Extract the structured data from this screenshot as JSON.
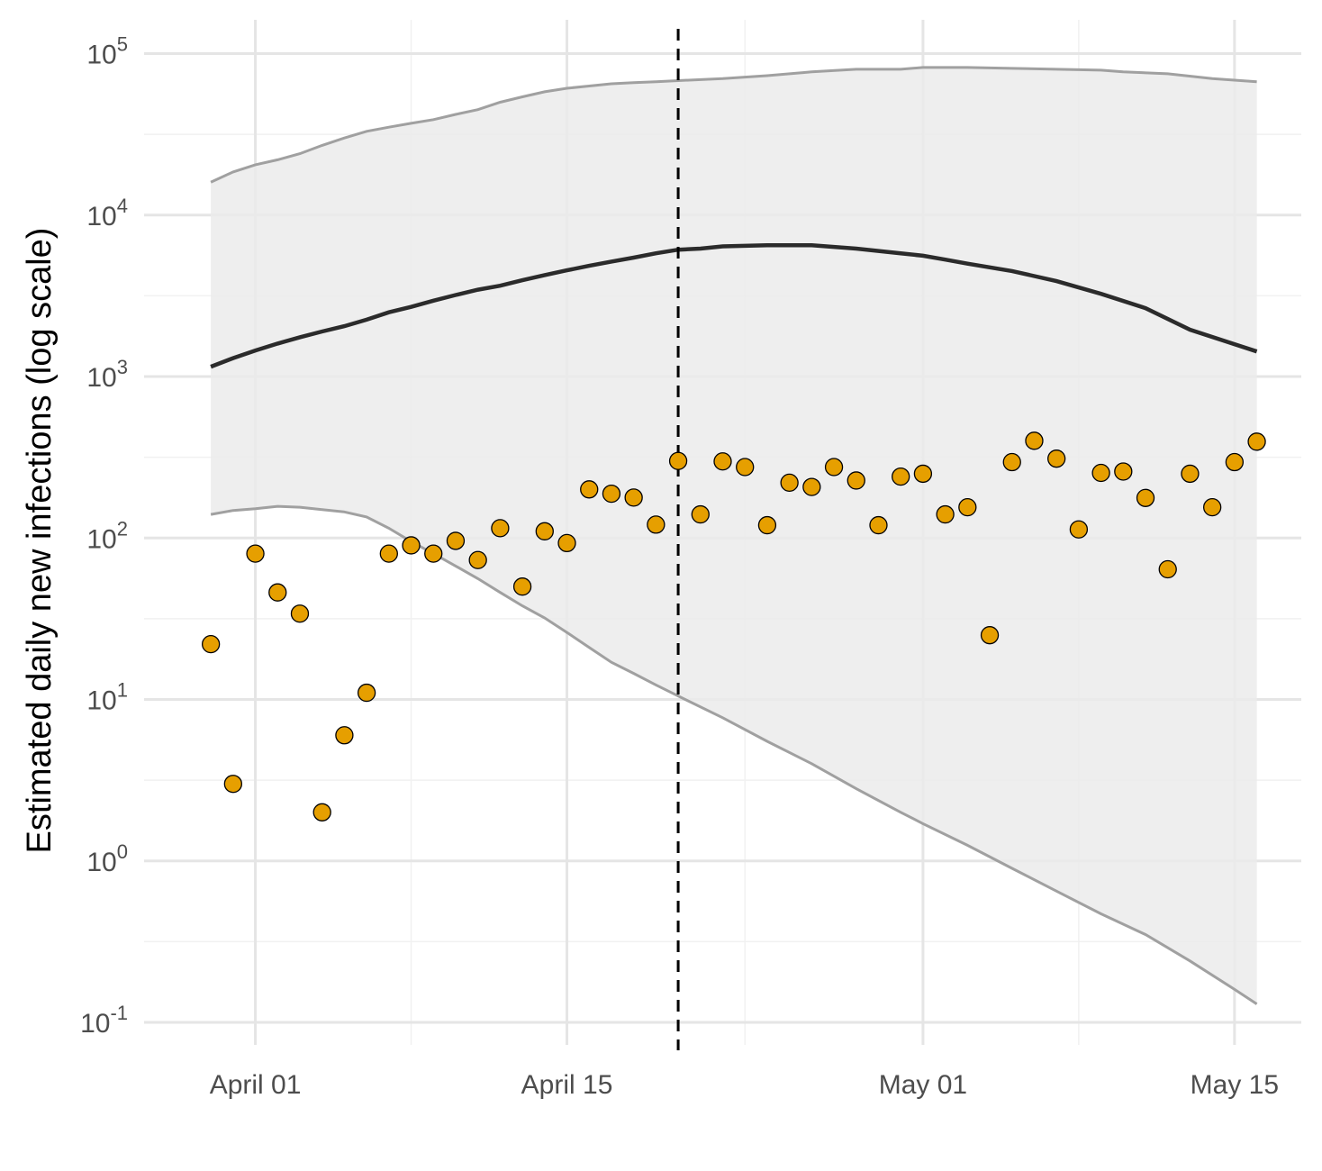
{
  "chart_data": {
    "type": "line",
    "ylabel": "Estimated daily new infections (log scale)",
    "xlabel": "",
    "y_scale": "log10",
    "ylim": [
      0.1,
      100000
    ],
    "y_ticks": [
      {
        "value": 0.1,
        "base": "10",
        "exp": "-1"
      },
      {
        "value": 1,
        "base": "10",
        "exp": "0"
      },
      {
        "value": 10,
        "base": "10",
        "exp": "1"
      },
      {
        "value": 100,
        "base": "10",
        "exp": "2"
      },
      {
        "value": 1000,
        "base": "10",
        "exp": "3"
      },
      {
        "value": 10000,
        "base": "10",
        "exp": "4"
      },
      {
        "value": 100000,
        "base": "10",
        "exp": "5"
      }
    ],
    "xlim": [
      "2020-03-27",
      "2020-05-18"
    ],
    "x_ticks": [
      {
        "date": "2020-04-01",
        "label": "April 01"
      },
      {
        "date": "2020-04-15",
        "label": "April 15"
      },
      {
        "date": "2020-05-01",
        "label": "May 01"
      },
      {
        "date": "2020-05-15",
        "label": "May 15"
      }
    ],
    "x_minor_ticks": [
      "2020-03-25",
      "2020-04-08",
      "2020-04-23",
      "2020-05-08"
    ],
    "grid": true,
    "vline": {
      "date": "2020-04-20",
      "style": "dashed"
    },
    "band_upper": [
      [
        "2020-03-30",
        16000
      ],
      [
        "2020-03-31",
        18500
      ],
      [
        "2020-04-01",
        20500
      ],
      [
        "2020-04-02",
        22000
      ],
      [
        "2020-04-03",
        24000
      ],
      [
        "2020-04-04",
        27000
      ],
      [
        "2020-04-05",
        30000
      ],
      [
        "2020-04-06",
        33000
      ],
      [
        "2020-04-07",
        35000
      ],
      [
        "2020-04-08",
        37000
      ],
      [
        "2020-04-09",
        39000
      ],
      [
        "2020-04-10",
        42000
      ],
      [
        "2020-04-11",
        45000
      ],
      [
        "2020-04-12",
        50000
      ],
      [
        "2020-04-13",
        54000
      ],
      [
        "2020-04-14",
        58000
      ],
      [
        "2020-04-15",
        61000
      ],
      [
        "2020-04-16",
        63000
      ],
      [
        "2020-04-17",
        65000
      ],
      [
        "2020-04-18",
        66000
      ],
      [
        "2020-04-19",
        67000
      ],
      [
        "2020-04-20",
        68000
      ],
      [
        "2020-04-22",
        70000
      ],
      [
        "2020-04-24",
        73000
      ],
      [
        "2020-04-26",
        77000
      ],
      [
        "2020-04-28",
        80000
      ],
      [
        "2020-04-30",
        80000
      ],
      [
        "2020-05-01",
        82000
      ],
      [
        "2020-05-03",
        82000
      ],
      [
        "2020-05-05",
        81000
      ],
      [
        "2020-05-07",
        80000
      ],
      [
        "2020-05-09",
        79000
      ],
      [
        "2020-05-10",
        77000
      ],
      [
        "2020-05-12",
        75000
      ],
      [
        "2020-05-14",
        70000
      ],
      [
        "2020-05-16",
        67000
      ]
    ],
    "band_lower": [
      [
        "2020-03-30",
        140
      ],
      [
        "2020-03-31",
        148
      ],
      [
        "2020-04-01",
        152
      ],
      [
        "2020-04-02",
        157
      ],
      [
        "2020-04-03",
        155
      ],
      [
        "2020-04-04",
        150
      ],
      [
        "2020-04-05",
        145
      ],
      [
        "2020-04-06",
        135
      ],
      [
        "2020-04-07",
        115
      ],
      [
        "2020-04-08",
        95
      ],
      [
        "2020-04-09",
        80
      ],
      [
        "2020-04-10",
        67
      ],
      [
        "2020-04-11",
        56
      ],
      [
        "2020-04-12",
        46
      ],
      [
        "2020-04-13",
        38
      ],
      [
        "2020-04-14",
        32
      ],
      [
        "2020-04-15",
        26
      ],
      [
        "2020-04-16",
        21
      ],
      [
        "2020-04-17",
        17
      ],
      [
        "2020-04-18",
        14.5
      ],
      [
        "2020-04-19",
        12.3
      ],
      [
        "2020-04-20",
        10.5
      ],
      [
        "2020-04-22",
        7.7
      ],
      [
        "2020-04-24",
        5.5
      ],
      [
        "2020-04-26",
        4.0
      ],
      [
        "2020-04-28",
        2.8
      ],
      [
        "2020-04-30",
        2.0
      ],
      [
        "2020-05-01",
        1.7
      ],
      [
        "2020-05-03",
        1.25
      ],
      [
        "2020-05-05",
        0.9
      ],
      [
        "2020-05-07",
        0.65
      ],
      [
        "2020-05-09",
        0.47
      ],
      [
        "2020-05-11",
        0.35
      ],
      [
        "2020-05-13",
        0.24
      ],
      [
        "2020-05-15",
        0.16
      ],
      [
        "2020-05-16",
        0.13
      ]
    ],
    "median_line": [
      [
        "2020-03-30",
        1150
      ],
      [
        "2020-03-31",
        1300
      ],
      [
        "2020-04-01",
        1450
      ],
      [
        "2020-04-02",
        1600
      ],
      [
        "2020-04-03",
        1750
      ],
      [
        "2020-04-04",
        1900
      ],
      [
        "2020-04-05",
        2050
      ],
      [
        "2020-04-06",
        2250
      ],
      [
        "2020-04-07",
        2500
      ],
      [
        "2020-04-08",
        2700
      ],
      [
        "2020-04-09",
        2950
      ],
      [
        "2020-04-10",
        3200
      ],
      [
        "2020-04-11",
        3450
      ],
      [
        "2020-04-12",
        3650
      ],
      [
        "2020-04-13",
        3950
      ],
      [
        "2020-04-14",
        4250
      ],
      [
        "2020-04-15",
        4550
      ],
      [
        "2020-04-16",
        4850
      ],
      [
        "2020-04-17",
        5150
      ],
      [
        "2020-04-18",
        5450
      ],
      [
        "2020-04-19",
        5800
      ],
      [
        "2020-04-20",
        6100
      ],
      [
        "2020-04-21",
        6200
      ],
      [
        "2020-04-22",
        6400
      ],
      [
        "2020-04-24",
        6500
      ],
      [
        "2020-04-26",
        6500
      ],
      [
        "2020-04-28",
        6200
      ],
      [
        "2020-04-30",
        5800
      ],
      [
        "2020-05-01",
        5600
      ],
      [
        "2020-05-02",
        5300
      ],
      [
        "2020-05-03",
        5000
      ],
      [
        "2020-05-05",
        4500
      ],
      [
        "2020-05-07",
        3900
      ],
      [
        "2020-05-09",
        3250
      ],
      [
        "2020-05-11",
        2650
      ],
      [
        "2020-05-13",
        1950
      ],
      [
        "2020-05-16",
        1430
      ]
    ],
    "points": [
      [
        "2020-03-30",
        22
      ],
      [
        "2020-03-31",
        3
      ],
      [
        "2020-04-01",
        80
      ],
      [
        "2020-04-02",
        46
      ],
      [
        "2020-04-03",
        34
      ],
      [
        "2020-04-04",
        2
      ],
      [
        "2020-04-05",
        6
      ],
      [
        "2020-04-06",
        11
      ],
      [
        "2020-04-07",
        80
      ],
      [
        "2020-04-08",
        90
      ],
      [
        "2020-04-09",
        80
      ],
      [
        "2020-04-10",
        96
      ],
      [
        "2020-04-11",
        73
      ],
      [
        "2020-04-12",
        115
      ],
      [
        "2020-04-13",
        50
      ],
      [
        "2020-04-14",
        110
      ],
      [
        "2020-04-15",
        93
      ],
      [
        "2020-04-16",
        200
      ],
      [
        "2020-04-17",
        188
      ],
      [
        "2020-04-18",
        178
      ],
      [
        "2020-04-19",
        121
      ],
      [
        "2020-04-20",
        300
      ],
      [
        "2020-04-21",
        140
      ],
      [
        "2020-04-22",
        298
      ],
      [
        "2020-04-23",
        275
      ],
      [
        "2020-04-24",
        120
      ],
      [
        "2020-04-25",
        220
      ],
      [
        "2020-04-26",
        207
      ],
      [
        "2020-04-27",
        275
      ],
      [
        "2020-04-28",
        227
      ],
      [
        "2020-04-29",
        120
      ],
      [
        "2020-04-30",
        240
      ],
      [
        "2020-05-01",
        250
      ],
      [
        "2020-05-02",
        140
      ],
      [
        "2020-05-03",
        155
      ],
      [
        "2020-05-04",
        25
      ],
      [
        "2020-05-05",
        295
      ],
      [
        "2020-05-06",
        400
      ],
      [
        "2020-05-07",
        310
      ],
      [
        "2020-05-08",
        113
      ],
      [
        "2020-05-09",
        253
      ],
      [
        "2020-05-10",
        258
      ],
      [
        "2020-05-11",
        177
      ],
      [
        "2020-05-12",
        64
      ],
      [
        "2020-05-13",
        250
      ],
      [
        "2020-05-14",
        155
      ],
      [
        "2020-05-15",
        295
      ],
      [
        "2020-05-16",
        395
      ]
    ],
    "colors": {
      "band_fill": "#ebebeb",
      "band_edge": "#a0a0a0",
      "median": "#2b2b2b",
      "point_fill": "#e69f00",
      "point_edge": "#000000",
      "grid_major": "#e5e5e5",
      "grid_minor": "#f1f1f1",
      "vline": "#000000"
    }
  }
}
